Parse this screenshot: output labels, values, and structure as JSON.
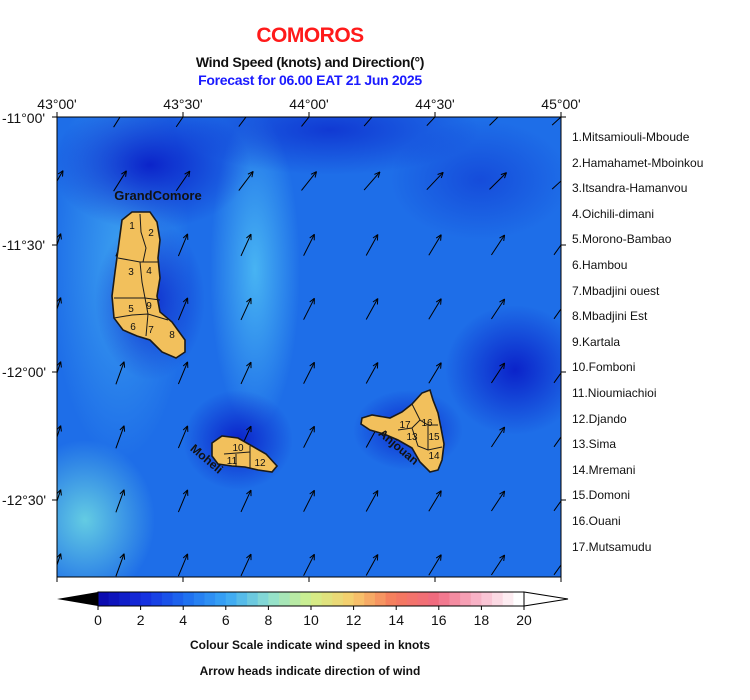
{
  "header": {
    "title": "COMOROS",
    "subtitle": "Wind Speed (knots) and Direction(°)",
    "forecast": "Forecast for  06.00 EAT 21 Jun 2025"
  },
  "axes": {
    "lon_ticks": [
      "43°00'",
      "43°30'",
      "44°00'",
      "44°30'",
      "45°00'"
    ],
    "lat_ticks": [
      "-11°00'",
      "-11°30'",
      "-12°00'",
      "-12°30'"
    ]
  },
  "islands": [
    {
      "name": "GrandComore"
    },
    {
      "name": "Moheli"
    },
    {
      "name": "Anjouan"
    }
  ],
  "region_numbers": {
    "grand_comore": [
      "1",
      "2",
      "3",
      "4",
      "5",
      "6",
      "7",
      "8",
      "9"
    ],
    "moheli": [
      "10",
      "11",
      "12"
    ],
    "anjouan": [
      "13",
      "14",
      "15",
      "16",
      "17"
    ]
  },
  "legend": {
    "items": [
      "1.Mitsamiouli-Mboude",
      "2.Hamahamet-Mboinkou",
      "3.Itsandra-Hamanvou",
      "4.Oichili-dimani",
      "5.Morono-Bambao",
      "6.Hambou",
      "7.Mbadjini ouest",
      "8.Mbadjini Est",
      "9.Kartala",
      "10.Fomboni",
      "11.Nioumiachioi",
      "12.Djando",
      "13.Sima",
      "14.Mremani",
      "15.Domoni",
      "16.Ouani",
      "17.Mutsamudu"
    ]
  },
  "colorbar": {
    "ticks": [
      "0",
      "2",
      "4",
      "6",
      "8",
      "10",
      "12",
      "14",
      "16",
      "18",
      "20"
    ],
    "colors": [
      "#0b0bb0",
      "#1530e0",
      "#1f6ff0",
      "#3aa8f5",
      "#8fe0d0",
      "#d2f08a",
      "#f7cc6c",
      "#f57a5c",
      "#f06a80",
      "#f8b4c8",
      "#ffffff"
    ]
  },
  "captions": {
    "colour": "Colour Scale indicate wind speed in knots",
    "arrow": "Arrow heads indicate direction of wind"
  }
}
